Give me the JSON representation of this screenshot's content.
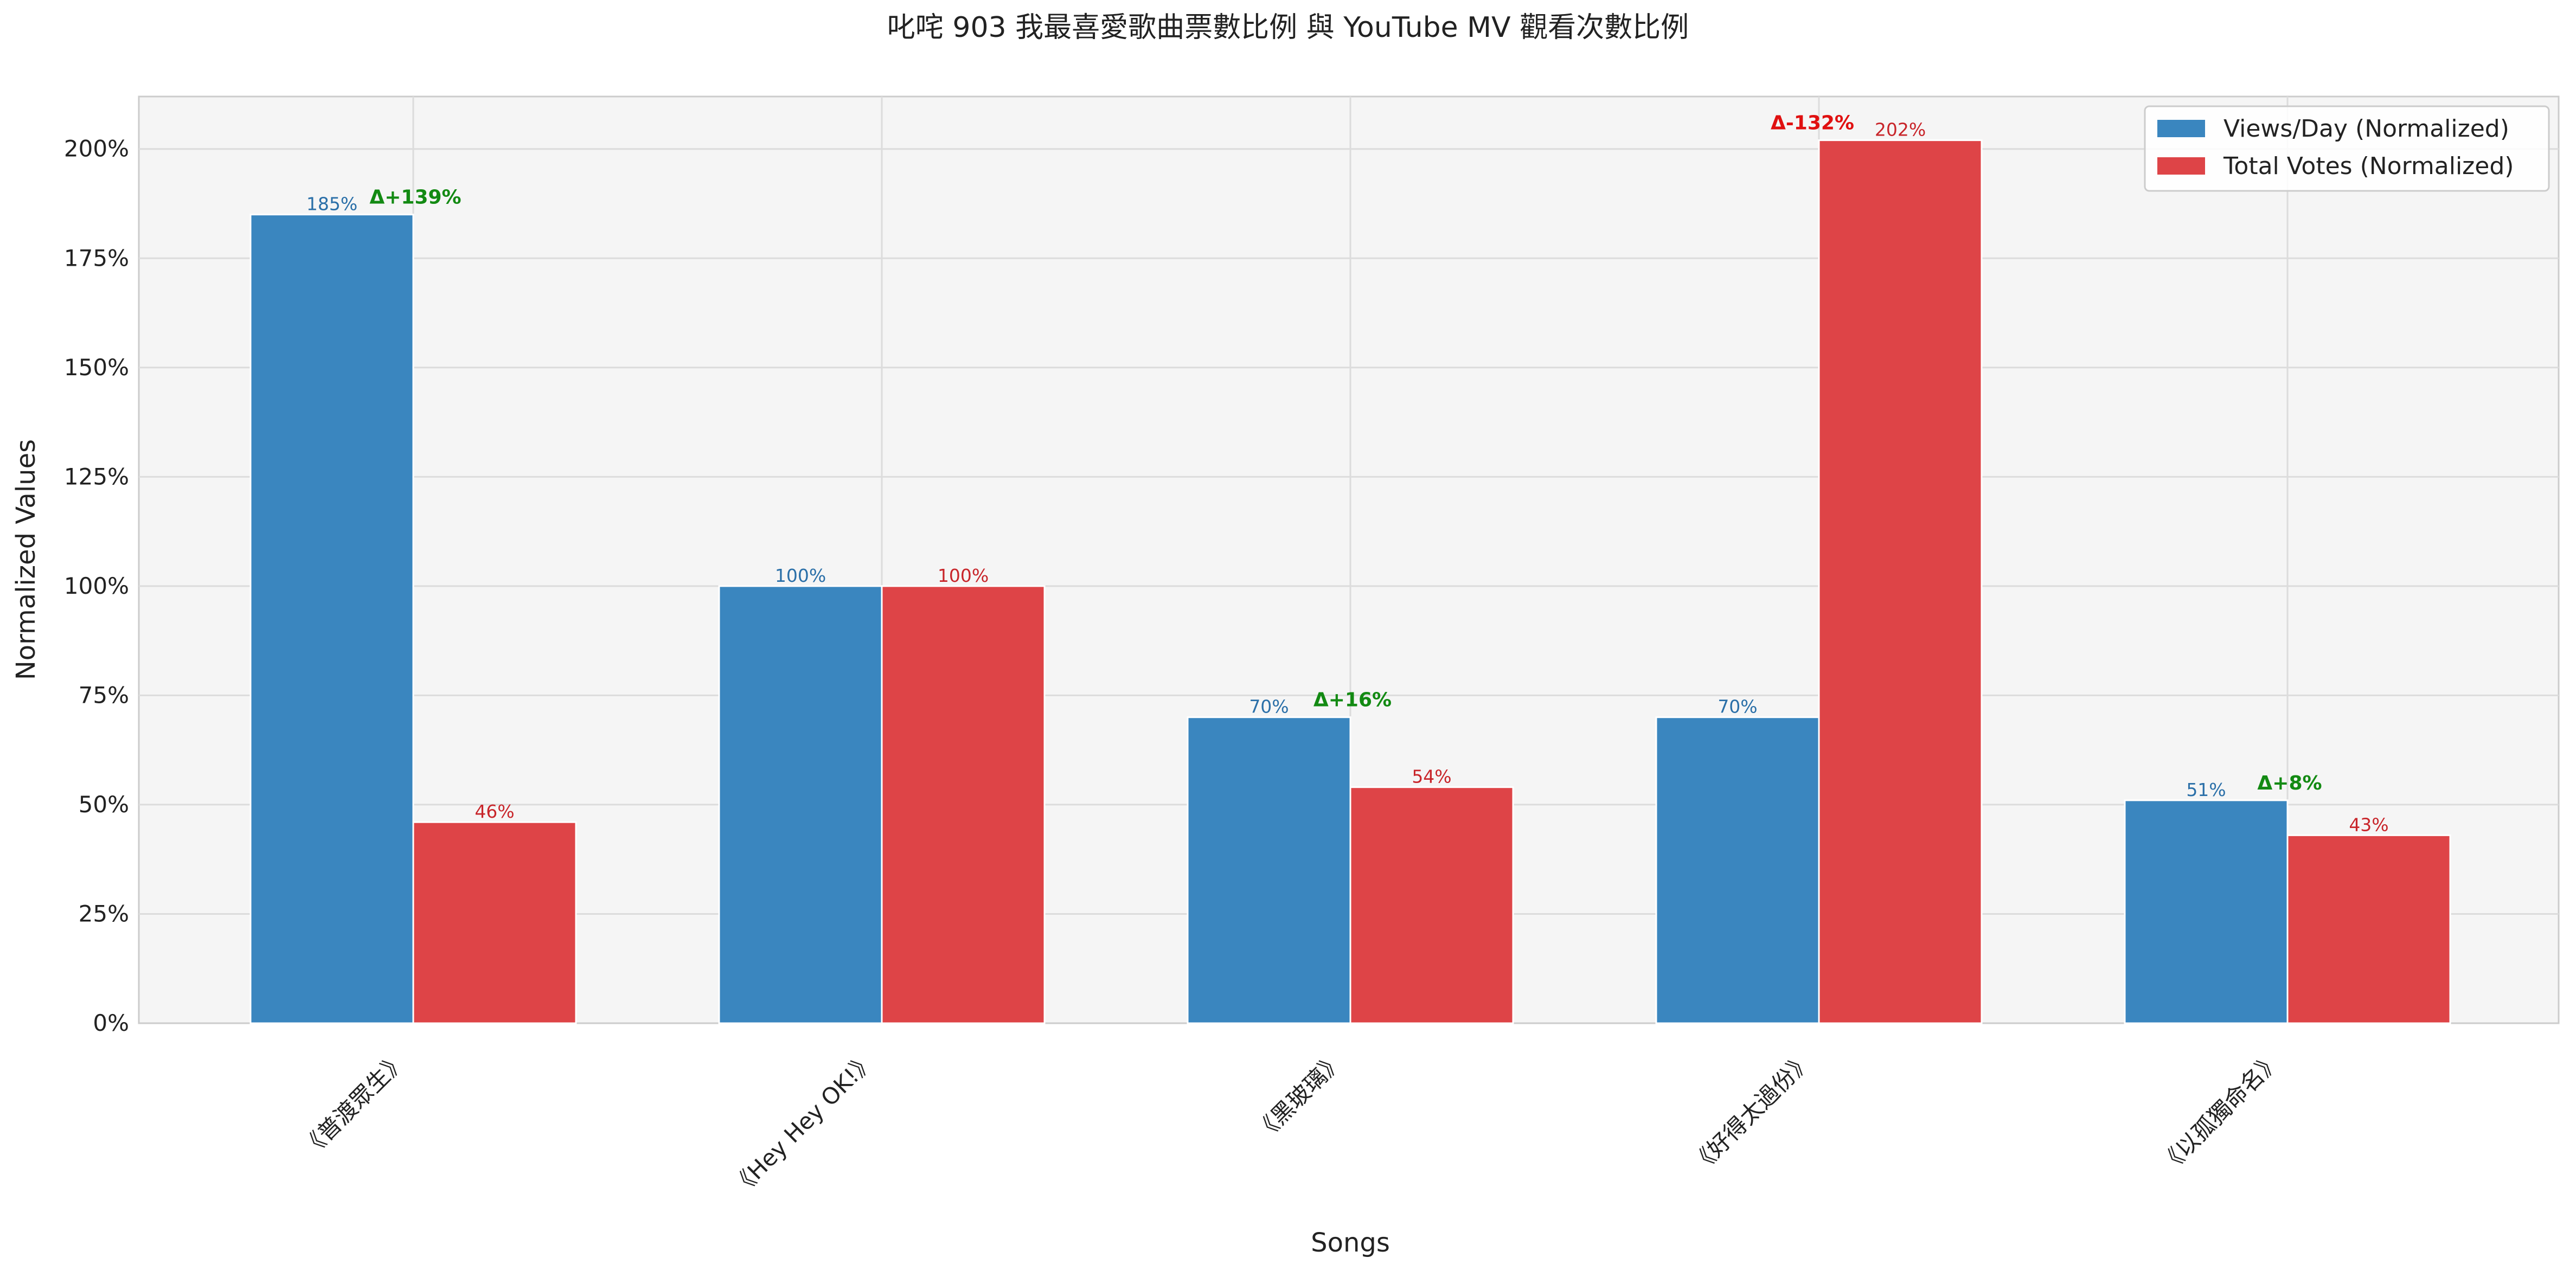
{
  "chart_data": {
    "type": "bar",
    "title": "叱咤 903 我最喜愛歌曲票數比例 與 YouTube MV 觀看次數比例",
    "xlabel": "Songs",
    "ylabel": "Normalized Values",
    "categories": [
      "《普渡眾生》",
      "《Hey Hey OK!》",
      "《黑玻璃》",
      "《好得太過份》",
      "《以孤獨命名》"
    ],
    "series": [
      {
        "name": "Views/Day (Normalized)",
        "color": "#3a86bf",
        "values": [
          185,
          100,
          70,
          70,
          51
        ],
        "labels": [
          "185%",
          "100%",
          "70%",
          "70%",
          "51%"
        ],
        "label_color": "#2a6fa8"
      },
      {
        "name": "Total Votes (Normalized)",
        "color": "#de4447",
        "values": [
          46,
          100,
          54,
          202,
          43
        ],
        "labels": [
          "46%",
          "100%",
          "54%",
          "202%",
          "43%"
        ],
        "label_color": "#c8252a"
      }
    ],
    "annotations": [
      {
        "category_index": 0,
        "text": "Δ+139%",
        "color": "#138a13"
      },
      {
        "category_index": 2,
        "text": "Δ+16%",
        "color": "#138a13"
      },
      {
        "category_index": 3,
        "text": "Δ-132%",
        "color": "#e01010"
      },
      {
        "category_index": 4,
        "text": "Δ+8%",
        "color": "#138a13"
      }
    ],
    "y_ticks": [
      "0%",
      "25%",
      "50%",
      "75%",
      "100%",
      "125%",
      "150%",
      "175%",
      "200%"
    ],
    "ylim": [
      0,
      212
    ],
    "grid": true,
    "legend_position": "top-right",
    "background": "#f5f5f5"
  }
}
